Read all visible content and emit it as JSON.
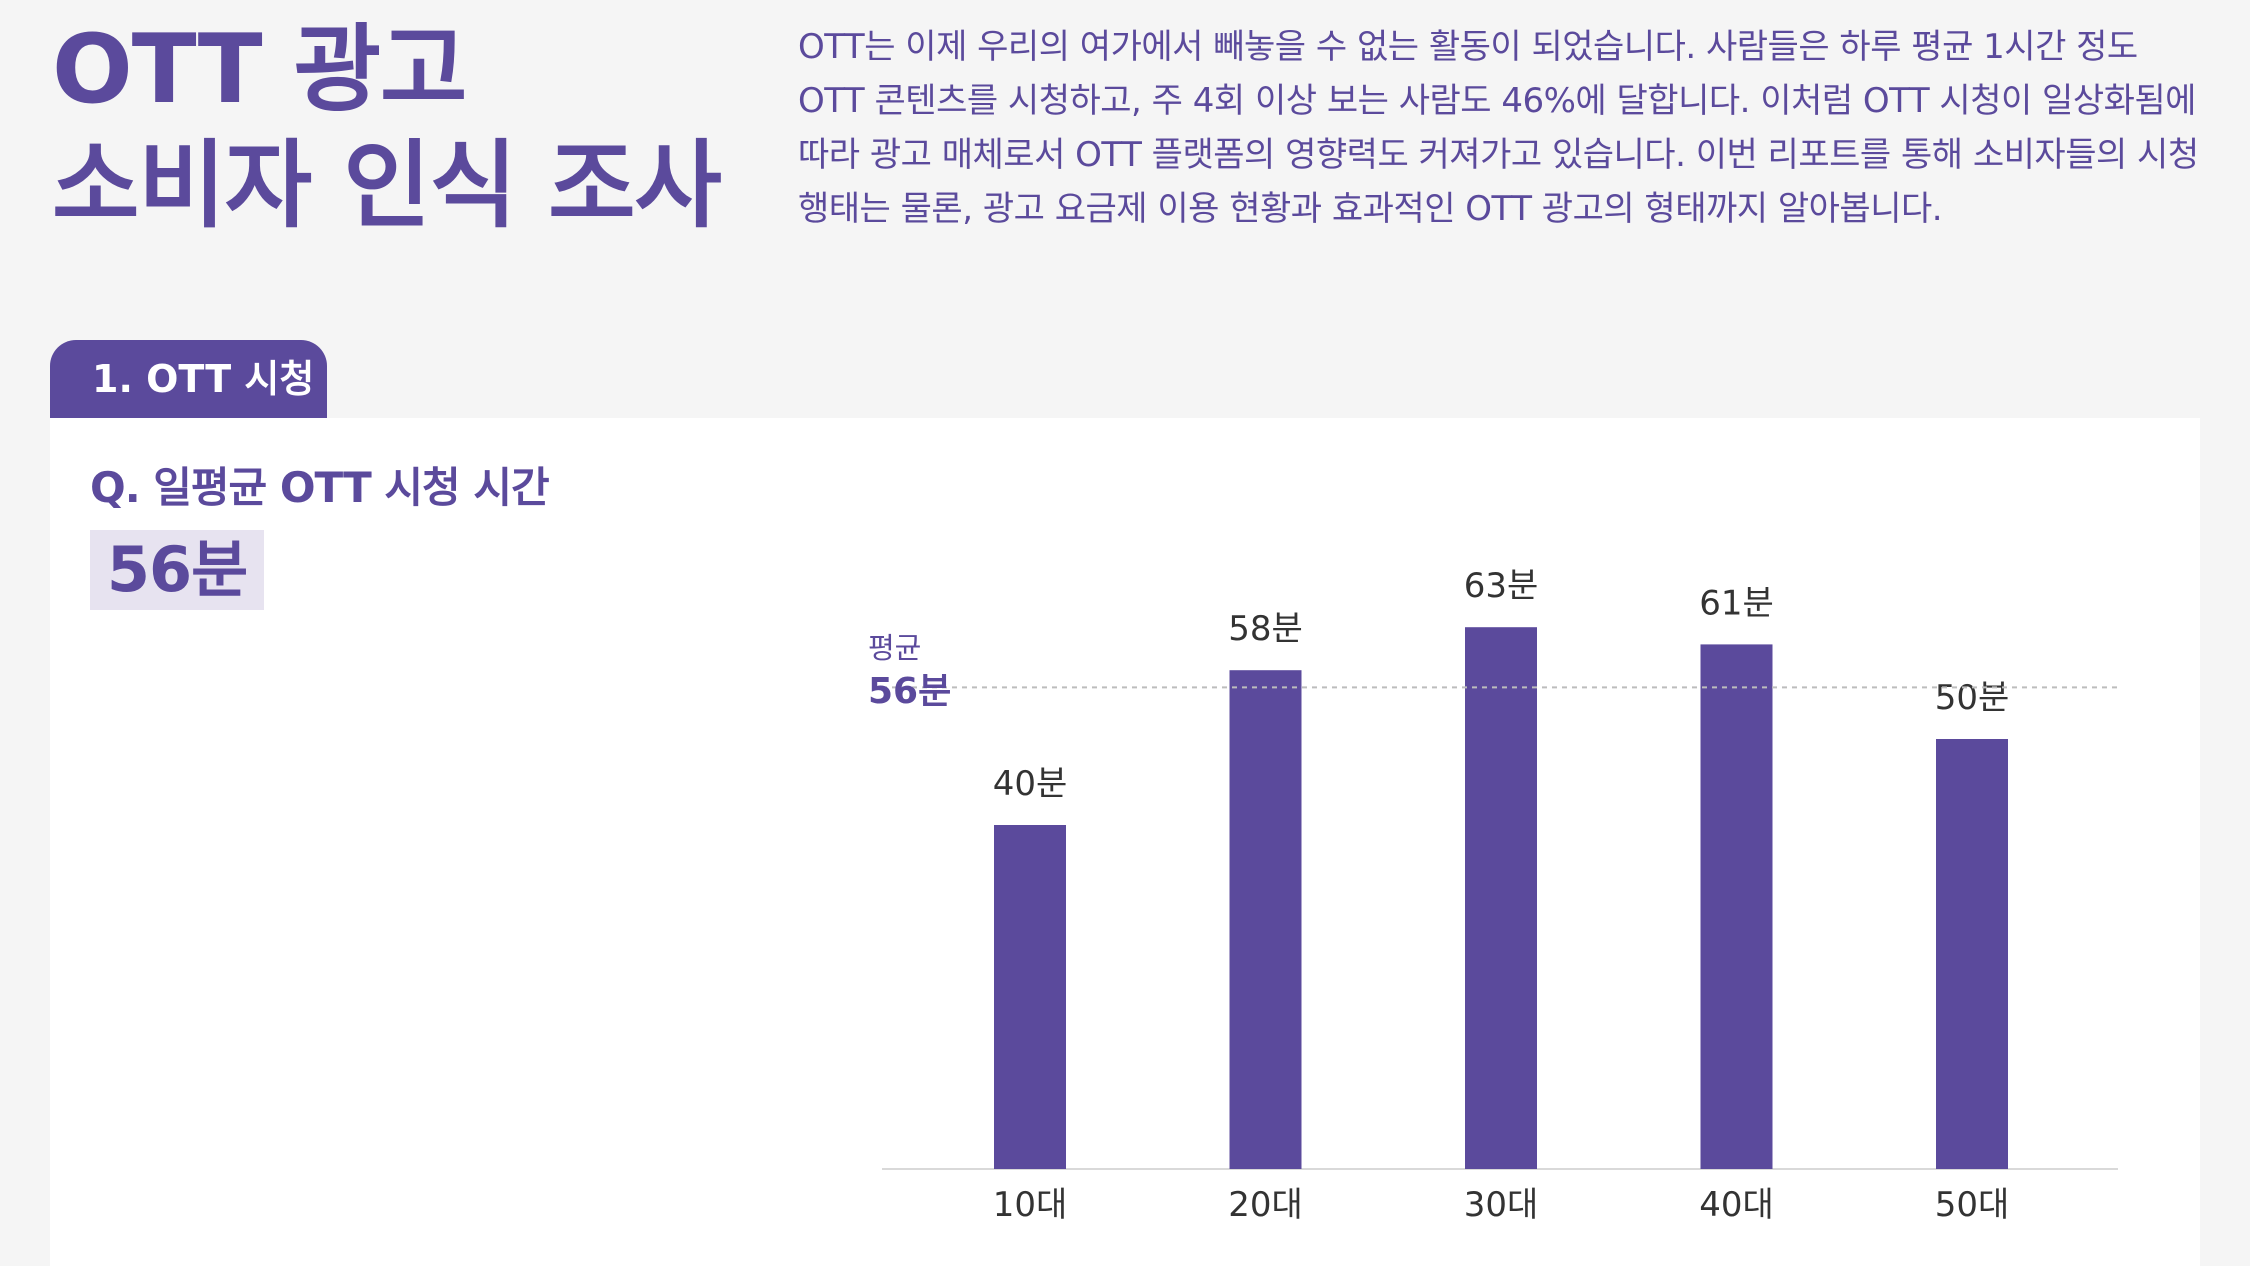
{
  "header": {
    "title_line1": "OTT 광고",
    "title_line2": "소비자 인식 조사",
    "intro": "OTT는 이제 우리의 여가에서 빼놓을 수 없는 활동이 되었습니다. 사람들은 하루 평균 1시간 정도 OTT 콘텐츠를 시청하고, 주 4회 이상 보는 사람도 46%에 달합니다. 이처럼 OTT 시청이 일상화됨에 따라 광고 매체로서 OTT 플랫폼의 영향력도 커져가고 있습니다. 이번 리포트를 통해 소비자들의 시청 행태는 물론, 광고 요금제 이용 현황과 효과적인 OTT 광고의 형태까지 알아봅니다."
  },
  "section": {
    "tab_label": "1. OTT 시청"
  },
  "question": {
    "text": "Q. 일평균 OTT 시청 시간",
    "answer": "56분"
  },
  "colors": {
    "accent": "#5b4a9c",
    "answer_bg": "#e7e3f0",
    "text_dark": "#333333"
  },
  "chart_data": {
    "type": "bar",
    "categories": [
      "10대",
      "20대",
      "30대",
      "40대",
      "50대"
    ],
    "values": [
      40,
      58,
      63,
      61,
      50
    ],
    "value_labels": [
      "40분",
      "58분",
      "63분",
      "61분",
      "50분"
    ],
    "ylim": [
      0,
      70
    ],
    "grid": false,
    "reference_line": {
      "value": 56,
      "label": "평균",
      "value_label": "56분",
      "style": "dashed"
    }
  }
}
